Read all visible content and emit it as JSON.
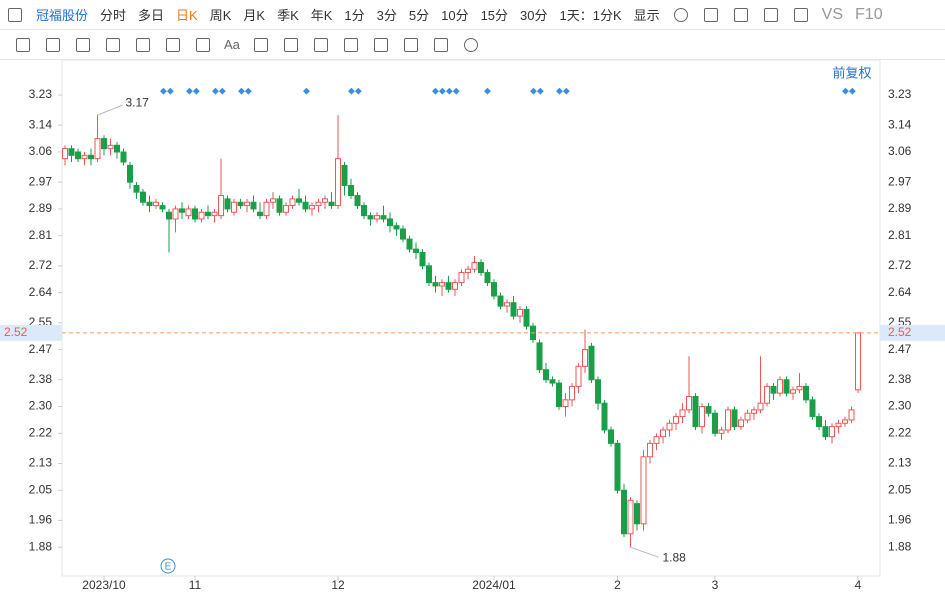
{
  "toolbar": {
    "stock": "冠福股份",
    "periods": [
      "分时",
      "多日",
      "日K",
      "周K",
      "月K",
      "季K",
      "年K",
      "1分",
      "3分",
      "5分",
      "10分",
      "15分",
      "30分"
    ],
    "active_period": "日K",
    "range": "1天：1分K",
    "display": "显示",
    "vs": "VS",
    "f10": "F10",
    "font_tool": "Aa"
  },
  "chart_data": {
    "type": "candlestick",
    "adjust": "前复权",
    "event_marker": "E",
    "categories": [
      null,
      null,
      null,
      null,
      null,
      null,
      "2023/10",
      null,
      null,
      null,
      null,
      null,
      null,
      null,
      null,
      null,
      null,
      null,
      null,
      null,
      "11",
      null,
      null,
      null,
      null,
      null,
      null,
      null,
      null,
      null,
      null,
      null,
      null,
      null,
      null,
      null,
      null,
      null,
      null,
      null,
      null,
      null,
      "12",
      null,
      null,
      null,
      null,
      null,
      null,
      null,
      null,
      null,
      null,
      null,
      null,
      null,
      null,
      null,
      null,
      null,
      null,
      null,
      null,
      null,
      null,
      null,
      "2024/01",
      null,
      null,
      null,
      null,
      null,
      null,
      null,
      null,
      null,
      null,
      null,
      null,
      null,
      null,
      null,
      null,
      null,
      null,
      "2",
      null,
      null,
      null,
      null,
      null,
      null,
      null,
      null,
      null,
      null,
      null,
      null,
      null,
      null,
      "3",
      null,
      null,
      null,
      null,
      null,
      null,
      null,
      null,
      null,
      null,
      null,
      null,
      null,
      null,
      null,
      null,
      null,
      null,
      null,
      null,
      null,
      "4"
    ],
    "ohlc": [
      [
        3.04,
        3.08,
        3.02,
        3.07
      ],
      [
        3.07,
        3.08,
        3.03,
        3.05
      ],
      [
        3.06,
        3.07,
        3.03,
        3.04
      ],
      [
        3.04,
        3.06,
        3.02,
        3.05
      ],
      [
        3.05,
        3.07,
        3.02,
        3.04
      ],
      [
        3.04,
        3.17,
        3.03,
        3.1
      ],
      [
        3.1,
        3.11,
        3.05,
        3.07
      ],
      [
        3.07,
        3.1,
        3.05,
        3.08
      ],
      [
        3.08,
        3.09,
        3.04,
        3.06
      ],
      [
        3.06,
        3.07,
        3.02,
        3.03
      ],
      [
        3.02,
        3.03,
        2.95,
        2.97
      ],
      [
        2.96,
        2.97,
        2.92,
        2.94
      ],
      [
        2.94,
        2.95,
        2.9,
        2.91
      ],
      [
        2.91,
        2.93,
        2.88,
        2.9
      ],
      [
        2.9,
        2.92,
        2.89,
        2.91
      ],
      [
        2.9,
        2.91,
        2.88,
        2.89
      ],
      [
        2.88,
        2.89,
        2.76,
        2.86
      ],
      [
        2.86,
        2.9,
        2.82,
        2.89
      ],
      [
        2.89,
        2.91,
        2.86,
        2.88
      ],
      [
        2.87,
        2.9,
        2.86,
        2.89
      ],
      [
        2.89,
        2.9,
        2.85,
        2.86
      ],
      [
        2.86,
        2.89,
        2.85,
        2.88
      ],
      [
        2.88,
        2.9,
        2.86,
        2.87
      ],
      [
        2.87,
        2.89,
        2.85,
        2.88
      ],
      [
        2.87,
        3.04,
        2.86,
        2.93
      ],
      [
        2.92,
        2.93,
        2.88,
        2.89
      ],
      [
        2.88,
        2.92,
        2.87,
        2.91
      ],
      [
        2.91,
        2.92,
        2.89,
        2.9
      ],
      [
        2.9,
        2.92,
        2.88,
        2.91
      ],
      [
        2.91,
        2.93,
        2.88,
        2.89
      ],
      [
        2.88,
        2.91,
        2.86,
        2.87
      ],
      [
        2.87,
        2.92,
        2.86,
        2.91
      ],
      [
        2.91,
        2.94,
        2.89,
        2.92
      ],
      [
        2.92,
        2.93,
        2.87,
        2.88
      ],
      [
        2.88,
        2.91,
        2.87,
        2.9
      ],
      [
        2.9,
        2.93,
        2.89,
        2.92
      ],
      [
        2.92,
        2.95,
        2.9,
        2.91
      ],
      [
        2.91,
        2.93,
        2.88,
        2.89
      ],
      [
        2.89,
        2.91,
        2.87,
        2.9
      ],
      [
        2.9,
        2.92,
        2.88,
        2.91
      ],
      [
        2.91,
        2.93,
        2.89,
        2.92
      ],
      [
        2.91,
        2.94,
        2.89,
        2.9
      ],
      [
        2.9,
        3.17,
        2.89,
        3.04
      ],
      [
        3.02,
        3.03,
        2.93,
        2.96
      ],
      [
        2.96,
        2.98,
        2.92,
        2.93
      ],
      [
        2.93,
        2.94,
        2.89,
        2.9
      ],
      [
        2.9,
        2.91,
        2.86,
        2.87
      ],
      [
        2.87,
        2.88,
        2.84,
        2.86
      ],
      [
        2.86,
        2.88,
        2.85,
        2.87
      ],
      [
        2.87,
        2.9,
        2.85,
        2.86
      ],
      [
        2.86,
        2.88,
        2.82,
        2.84
      ],
      [
        2.84,
        2.85,
        2.81,
        2.83
      ],
      [
        2.83,
        2.84,
        2.79,
        2.8
      ],
      [
        2.8,
        2.81,
        2.76,
        2.77
      ],
      [
        2.77,
        2.79,
        2.74,
        2.76
      ],
      [
        2.76,
        2.77,
        2.71,
        2.72
      ],
      [
        2.72,
        2.73,
        2.66,
        2.67
      ],
      [
        2.67,
        2.69,
        2.64,
        2.66
      ],
      [
        2.66,
        2.68,
        2.63,
        2.67
      ],
      [
        2.67,
        2.69,
        2.64,
        2.65
      ],
      [
        2.65,
        2.68,
        2.63,
        2.67
      ],
      [
        2.67,
        2.71,
        2.66,
        2.7
      ],
      [
        2.7,
        2.72,
        2.68,
        2.71
      ],
      [
        2.71,
        2.75,
        2.7,
        2.73
      ],
      [
        2.73,
        2.74,
        2.69,
        2.7
      ],
      [
        2.7,
        2.71,
        2.66,
        2.67
      ],
      [
        2.67,
        2.68,
        2.62,
        2.63
      ],
      [
        2.63,
        2.64,
        2.59,
        2.6
      ],
      [
        2.6,
        2.62,
        2.58,
        2.61
      ],
      [
        2.61,
        2.63,
        2.56,
        2.57
      ],
      [
        2.57,
        2.6,
        2.55,
        2.59
      ],
      [
        2.59,
        2.6,
        2.53,
        2.54
      ],
      [
        2.54,
        2.55,
        2.49,
        2.5
      ],
      [
        2.49,
        2.5,
        2.4,
        2.41
      ],
      [
        2.41,
        2.43,
        2.37,
        2.38
      ],
      [
        2.38,
        2.39,
        2.36,
        2.37
      ],
      [
        2.37,
        2.38,
        2.29,
        2.3
      ],
      [
        2.3,
        2.34,
        2.27,
        2.32
      ],
      [
        2.32,
        2.37,
        2.3,
        2.36
      ],
      [
        2.36,
        2.43,
        2.34,
        2.42
      ],
      [
        2.42,
        2.53,
        2.4,
        2.47
      ],
      [
        2.48,
        2.49,
        2.37,
        2.38
      ],
      [
        2.38,
        2.39,
        2.29,
        2.31
      ],
      [
        2.31,
        2.32,
        2.22,
        2.23
      ],
      [
        2.23,
        2.24,
        2.18,
        2.19
      ],
      [
        2.19,
        2.2,
        2.04,
        2.05
      ],
      [
        2.05,
        2.07,
        1.91,
        1.92
      ],
      [
        1.92,
        2.03,
        1.88,
        2.02
      ],
      [
        2.01,
        2.02,
        1.93,
        1.95
      ],
      [
        1.95,
        2.17,
        1.93,
        2.15
      ],
      [
        2.15,
        2.2,
        2.13,
        2.19
      ],
      [
        2.19,
        2.22,
        2.17,
        2.21
      ],
      [
        2.21,
        2.24,
        2.19,
        2.23
      ],
      [
        2.23,
        2.26,
        2.21,
        2.25
      ],
      [
        2.25,
        2.28,
        2.23,
        2.27
      ],
      [
        2.27,
        2.31,
        2.25,
        2.29
      ],
      [
        2.29,
        2.45,
        2.28,
        2.33
      ],
      [
        2.33,
        2.34,
        2.23,
        2.24
      ],
      [
        2.24,
        2.31,
        2.22,
        2.3
      ],
      [
        2.3,
        2.31,
        2.27,
        2.28
      ],
      [
        2.28,
        2.29,
        2.21,
        2.22
      ],
      [
        2.22,
        2.24,
        2.2,
        2.23
      ],
      [
        2.23,
        2.3,
        2.22,
        2.29
      ],
      [
        2.29,
        2.3,
        2.23,
        2.24
      ],
      [
        2.24,
        2.27,
        2.23,
        2.26
      ],
      [
        2.26,
        2.29,
        2.25,
        2.28
      ],
      [
        2.28,
        2.3,
        2.26,
        2.29
      ],
      [
        2.29,
        2.45,
        2.28,
        2.31
      ],
      [
        2.31,
        2.37,
        2.3,
        2.36
      ],
      [
        2.36,
        2.37,
        2.32,
        2.34
      ],
      [
        2.34,
        2.39,
        2.33,
        2.38
      ],
      [
        2.38,
        2.39,
        2.33,
        2.34
      ],
      [
        2.34,
        2.36,
        2.32,
        2.35
      ],
      [
        2.35,
        2.4,
        2.34,
        2.36
      ],
      [
        2.36,
        2.37,
        2.31,
        2.32
      ],
      [
        2.32,
        2.33,
        2.26,
        2.27
      ],
      [
        2.27,
        2.28,
        2.23,
        2.24
      ],
      [
        2.24,
        2.26,
        2.2,
        2.21
      ],
      [
        2.21,
        2.25,
        2.19,
        2.24
      ],
      [
        2.24,
        2.26,
        2.22,
        2.25
      ],
      [
        2.25,
        2.27,
        2.24,
        2.26
      ],
      [
        2.26,
        2.3,
        2.25,
        2.29
      ],
      [
        2.35,
        2.52,
        2.34,
        2.52
      ]
    ],
    "up_color": "#ec5757",
    "down_color": "#1a9f48",
    "max_label": {
      "value": 3.17,
      "label": "3.17"
    },
    "min_label": {
      "value": 1.88,
      "label": "1.88"
    },
    "last_price": {
      "value": 2.52,
      "label": "2.52"
    },
    "last_price_color": "#f0a050",
    "ylim": [
      1.8,
      3.26
    ],
    "yticks": [
      {
        "value": 3.23,
        "label": "3.23"
      },
      3.14,
      3.06,
      2.97,
      2.89,
      2.81,
      2.72,
      2.64,
      2.55,
      2.47,
      2.38,
      {
        "value": 2.3,
        "label": "2.30"
      },
      2.22,
      2.13,
      2.05,
      1.96,
      1.88
    ]
  }
}
